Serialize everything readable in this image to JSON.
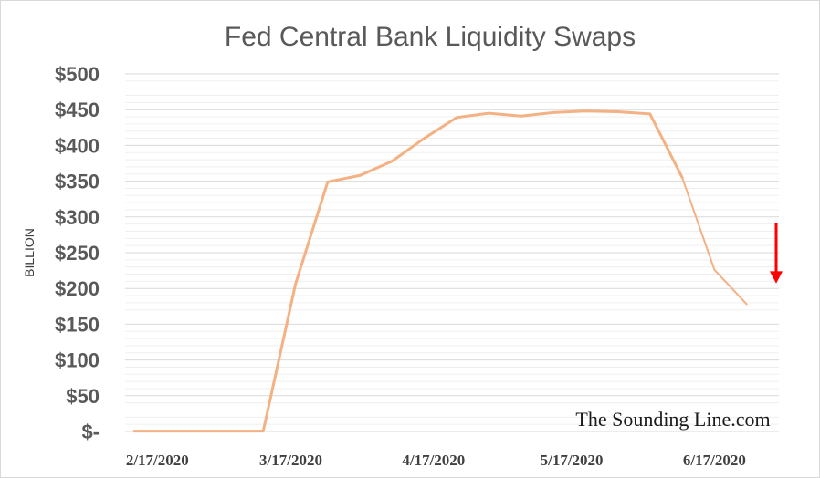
{
  "chart_data": {
    "type": "line",
    "title": "Fed Central Bank Liquidity Swaps",
    "ylabel": "BILLION",
    "xlabel": "",
    "ylim": [
      0,
      500
    ],
    "y_ticks": [
      {
        "value": 0,
        "label": "$-"
      },
      {
        "value": 50,
        "label": "$50"
      },
      {
        "value": 100,
        "label": "$100"
      },
      {
        "value": 150,
        "label": "$150"
      },
      {
        "value": 200,
        "label": "$200"
      },
      {
        "value": 250,
        "label": "$250"
      },
      {
        "value": 300,
        "label": "$300"
      },
      {
        "value": 350,
        "label": "$350"
      },
      {
        "value": 400,
        "label": "$400"
      },
      {
        "value": 450,
        "label": "$450"
      },
      {
        "value": 500,
        "label": "$500"
      }
    ],
    "x_ticks": [
      "2/17/2020",
      "3/17/2020",
      "4/17/2020",
      "5/17/2020",
      "6/17/2020"
    ],
    "grid": true,
    "series": [
      {
        "color": "#f4b183",
        "x": [
          "2/12/2020",
          "2/19/2020",
          "2/26/2020",
          "3/4/2020",
          "3/11/2020",
          "3/18/2020",
          "3/25/2020",
          "4/1/2020",
          "4/8/2020",
          "4/15/2020",
          "4/22/2020",
          "4/29/2020",
          "5/6/2020",
          "5/13/2020",
          "5/20/2020",
          "5/27/2020",
          "6/3/2020",
          "6/10/2020",
          "6/17/2020",
          "6/24/2020",
          "7/1/2020"
        ],
        "values": [
          0.5,
          0.5,
          0.5,
          0.5,
          0.5,
          206,
          349,
          358,
          378,
          410,
          439,
          445,
          441,
          446,
          448,
          447,
          444,
          355,
          226,
          178,
          null
        ]
      }
    ],
    "annotations": [
      {
        "type": "arrow",
        "color": "#ff0000",
        "direction": "down"
      },
      {
        "type": "text",
        "text": "The Sounding Line.com"
      }
    ]
  }
}
